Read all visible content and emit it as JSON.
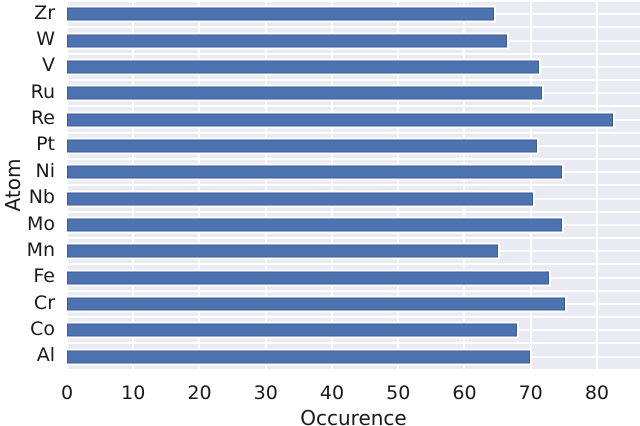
{
  "chart_data": {
    "type": "bar",
    "orientation": "horizontal",
    "title": "",
    "xlabel": "Occurence",
    "ylabel": "Atom",
    "categories": [
      "Zr",
      "W",
      "V",
      "Ru",
      "Re",
      "Pt",
      "Ni",
      "Nb",
      "Mo",
      "Mn",
      "Fe",
      "Cr",
      "Co",
      "Al"
    ],
    "values": [
      64.5,
      66.4,
      71.3,
      71.7,
      82.4,
      70.9,
      74.7,
      70.4,
      74.7,
      65.0,
      72.8,
      75.2,
      67.9,
      69.9
    ],
    "xticks": [
      0,
      10,
      20,
      30,
      40,
      50,
      60,
      70,
      80
    ],
    "xlim": [
      0,
      86.5
    ],
    "grid": true,
    "legend": false,
    "colors": {
      "bar": "#4c72b0",
      "bar_edge": "#ffffff",
      "plot_background": "#eaeaf2",
      "gridline": "#ffffff",
      "text": "#1a1a1a"
    }
  }
}
